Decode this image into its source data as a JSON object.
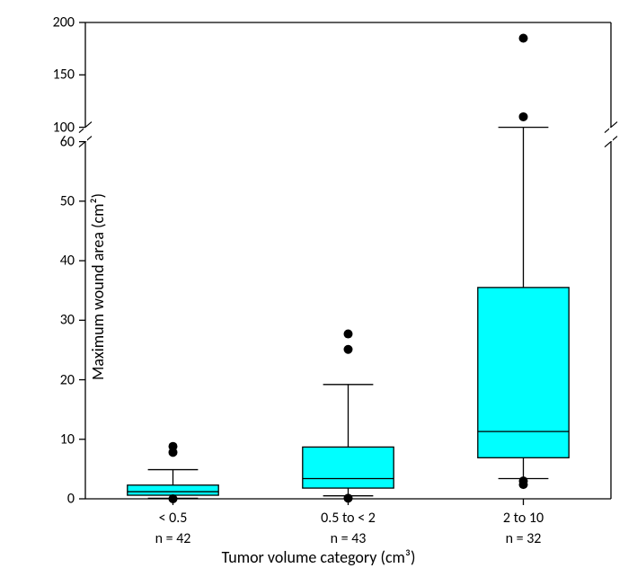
{
  "chart": {
    "type": "boxplot",
    "background_color": "#ffffff",
    "box_fill": "#00ffff",
    "box_stroke": "#000000",
    "whisker_stroke": "#000000",
    "outlier_fill": "#000000",
    "line_width": 1.3,
    "outlier_radius": 5,
    "font_family": "Calibri, Arial, sans-serif",
    "tick_fontsize": 16,
    "label_fontsize": 18,
    "y_axis": {
      "label": "Maximum wound area (cm²)",
      "lower": {
        "min": 0,
        "max": 60,
        "tick_step": 10
      },
      "upper": {
        "min": 100,
        "max": 200,
        "tick_step": 50
      }
    },
    "x_axis": {
      "label": "Tumor volume category (cm³)"
    },
    "categories": [
      {
        "label_line1": "< 0.5",
        "label_line2": "n = 42",
        "q1": 0.6,
        "median": 1.2,
        "q3": 2.3,
        "whisker_low": 0.1,
        "whisker_high": 4.9,
        "outliers_lower": [
          0
        ],
        "outliers_upper": [
          7.8,
          8.8
        ]
      },
      {
        "label_line1": "0.5 to < 2",
        "label_line2": "n = 43",
        "q1": 1.8,
        "median": 3.4,
        "q3": 8.7,
        "whisker_low": 0.5,
        "whisker_high": 19.2,
        "outliers_lower": [
          0.1
        ],
        "outliers_upper": [
          25.1,
          27.7
        ]
      },
      {
        "label_line1": "2 to 10",
        "label_line2": "n = 32",
        "q1": 6.9,
        "median": 11.3,
        "q3": 35.5,
        "whisker_low": 3.4,
        "whisker_high": 61.0,
        "outliers_lower": [
          2.4,
          3.0
        ],
        "outliers_upper": [
          110,
          185
        ]
      }
    ]
  }
}
